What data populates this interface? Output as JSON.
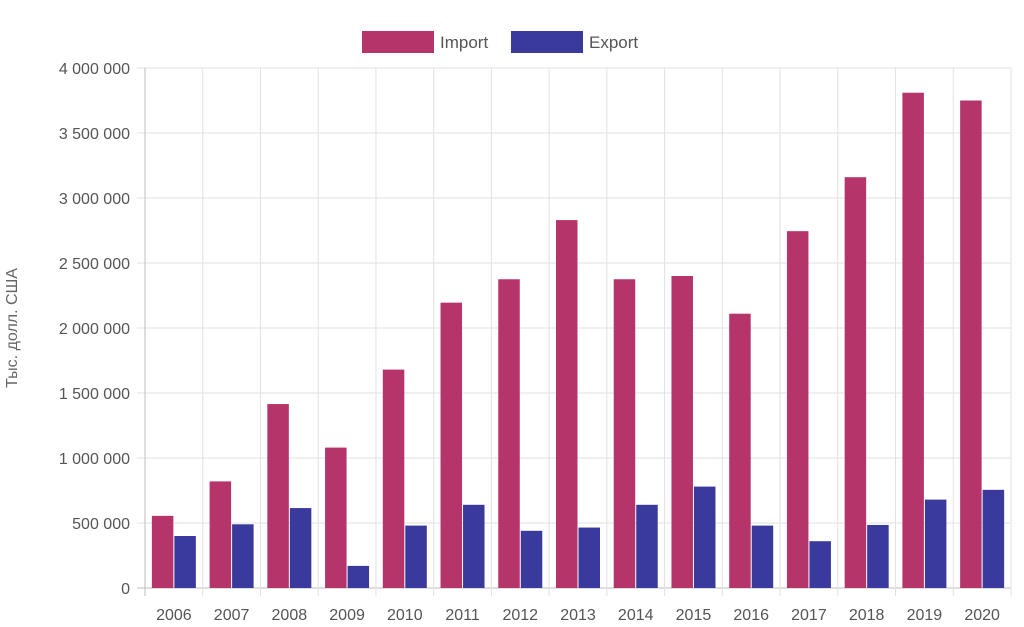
{
  "chart_data": {
    "type": "bar",
    "title": "",
    "xlabel": "",
    "ylabel": "Тыс. долл. США",
    "categories": [
      "2006",
      "2007",
      "2008",
      "2009",
      "2010",
      "2011",
      "2012",
      "2013",
      "2014",
      "2015",
      "2016",
      "2017",
      "2018",
      "2019",
      "2020"
    ],
    "series": [
      {
        "name": "Import",
        "color": "#b5356b",
        "values": [
          555000,
          820000,
          1415000,
          1080000,
          1680000,
          2195000,
          2375000,
          2830000,
          2375000,
          2400000,
          2110000,
          2745000,
          3160000,
          3810000,
          3750000
        ]
      },
      {
        "name": "Export",
        "color": "#3a3a9c",
        "values": [
          400000,
          490000,
          615000,
          170000,
          480000,
          640000,
          440000,
          465000,
          640000,
          780000,
          480000,
          360000,
          485000,
          680000,
          755000
        ]
      }
    ],
    "ylim": [
      0,
      4000000
    ],
    "yticks": [
      0,
      500000,
      1000000,
      1500000,
      2000000,
      2500000,
      3000000,
      3500000,
      4000000
    ],
    "ytick_labels": [
      "0",
      "500 000",
      "1 000 000",
      "1 500 000",
      "2 000 000",
      "2 500 000",
      "3 000 000",
      "3 500 000",
      "4 000 000"
    ],
    "grid": true,
    "legend_position": "top-center"
  }
}
